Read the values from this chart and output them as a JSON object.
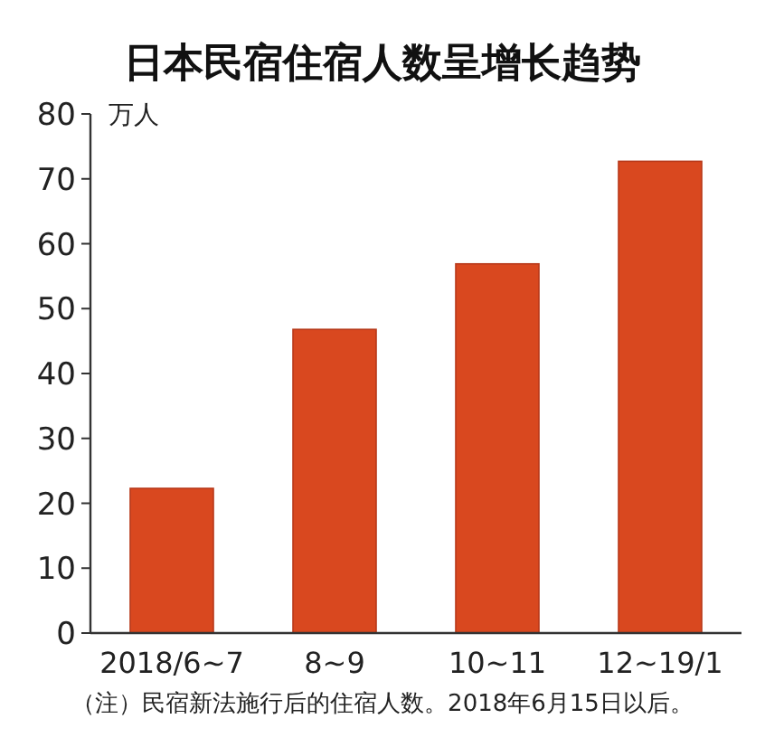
{
  "chart_data": {
    "type": "bar",
    "title": "日本民宿住宿人数呈增长趋势",
    "ylabel": "万人",
    "categories": [
      "2018/6~7",
      "8~9",
      "10~11",
      "12~19/1"
    ],
    "values": [
      22.3,
      46.8,
      56.9,
      72.7
    ],
    "color": "#d9481f",
    "ylim": [
      0,
      80
    ],
    "yticks": [
      0,
      10,
      20,
      30,
      40,
      50,
      60,
      70,
      80
    ],
    "grid": false,
    "annotations": [
      "（注）民宿新法施行后的住宿人数。2018年6月15日以后。"
    ]
  }
}
